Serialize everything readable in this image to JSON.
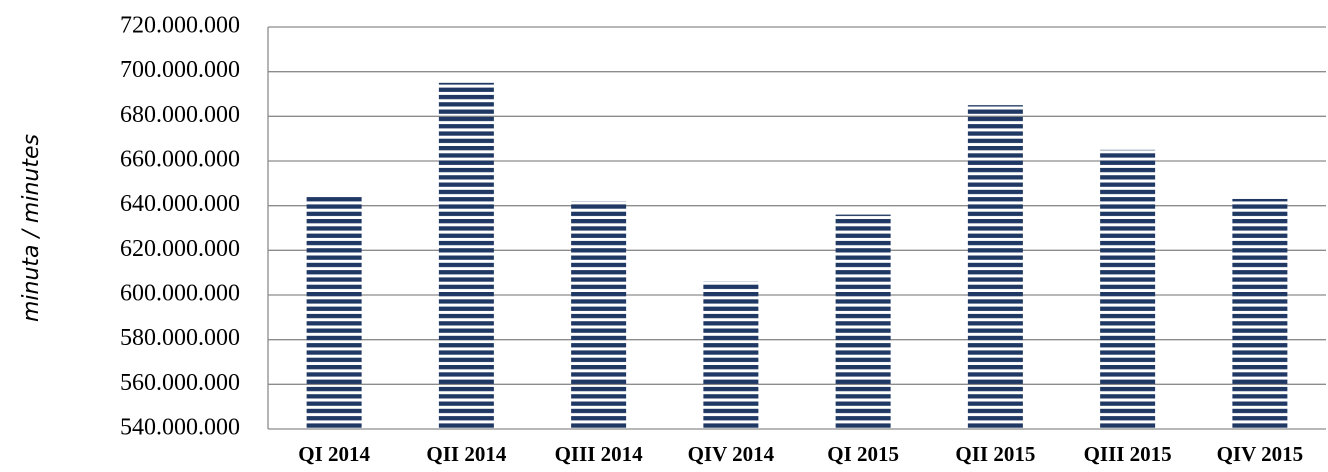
{
  "chart_data": {
    "type": "bar",
    "y_label": "minuta / minutes",
    "categories": [
      "QI 2014",
      "QII 2014",
      "QIII 2014",
      "QIV 2014",
      "QI 2015",
      "QII 2015",
      "QIII 2015",
      "QIV 2015"
    ],
    "values": [
      645000000,
      695000000,
      642000000,
      606000000,
      636000000,
      685000000,
      665000000,
      643000000
    ],
    "color": "#1f3864",
    "ylim": [
      540000000,
      720000000
    ],
    "yticks": [
      {
        "value": 540000000,
        "label": "540.000.000"
      },
      {
        "value": 560000000,
        "label": "560.000.000"
      },
      {
        "value": 580000000,
        "label": "580.000.000"
      },
      {
        "value": 600000000,
        "label": "600.000.000"
      },
      {
        "value": 620000000,
        "label": "620.000.000"
      },
      {
        "value": 640000000,
        "label": "640.000.000"
      },
      {
        "value": 660000000,
        "label": "660.000.000"
      },
      {
        "value": 680000000,
        "label": "680.000.000"
      },
      {
        "value": 700000000,
        "label": "700.000.000"
      },
      {
        "value": 720000000,
        "label": "720.000.000"
      }
    ],
    "grid": true
  }
}
